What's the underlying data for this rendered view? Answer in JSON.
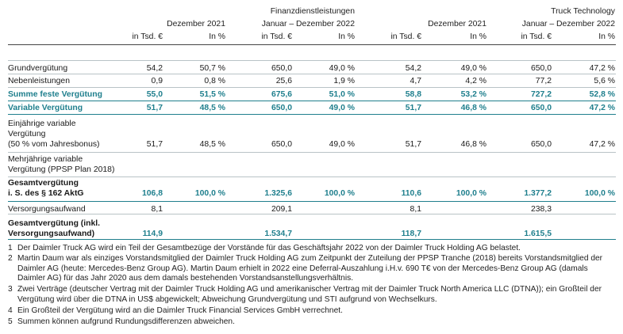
{
  "header": {
    "group1_title": "Finanzdienstleistungen",
    "group2_title": "Truck Technology",
    "periods": [
      "Dezember 2021",
      "Januar – Dezember 2022",
      "Dezember 2021",
      "Januar – Dezember 2022"
    ],
    "units": [
      "in Tsd. €",
      "In %",
      "in Tsd. €",
      "In %",
      "in Tsd. €",
      "In %",
      "in Tsd. €",
      "In %"
    ]
  },
  "rows": [
    {
      "label": [
        "Grundvergütung"
      ],
      "style": "normal",
      "values": [
        "54,2",
        "50,7 %",
        "650,0",
        "49,0 %",
        "54,2",
        "49,0 %",
        "650,0",
        "47,2 %"
      ]
    },
    {
      "label": [
        "Nebenleistungen"
      ],
      "style": "normal",
      "values": [
        "0,9",
        "0,8 %",
        "25,6",
        "1,9 %",
        "4,7",
        "4,2 %",
        "77,2",
        "5,6 %"
      ]
    },
    {
      "label": [
        "Summe feste Vergütung"
      ],
      "style": "teal",
      "values": [
        "55,0",
        "51,5 %",
        "675,6",
        "51,0 %",
        "58,8",
        "53,2 %",
        "727,2",
        "52,8 %"
      ]
    },
    {
      "label": [
        "Variable Vergütung"
      ],
      "style": "teal",
      "values": [
        "51,7",
        "48,5 %",
        "650,0",
        "49,0 %",
        "51,7",
        "46,8 %",
        "650,0",
        "47,2 %"
      ]
    },
    {
      "label": [
        "Einjährige variable",
        "Vergütung",
        "(50 % vom Jahresbonus)"
      ],
      "style": "normal",
      "values": [
        "51,7",
        "48,5 %",
        "650,0",
        "49,0 %",
        "51,7",
        "46,8 %",
        "650,0",
        "47,2 %"
      ]
    },
    {
      "label": [
        "Mehrjährige variable",
        "Vergütung (PPSP Plan 2018)"
      ],
      "style": "normal",
      "values": [
        "",
        "",
        "",
        "",
        "",
        "",
        "",
        ""
      ]
    },
    {
      "label": [
        "Gesamtvergütung",
        "i. S. des § 162 AktG"
      ],
      "style": "boldlabel",
      "values": [
        "106,8",
        "100,0 %",
        "1.325,6",
        "100,0 %",
        "110,6",
        "100,0 %",
        "1.377,2",
        "100,0 %"
      ]
    },
    {
      "label": [
        "Versorgungsaufwand"
      ],
      "style": "normal",
      "values": [
        "8,1",
        "",
        "209,1",
        "",
        "8,1",
        "",
        "238,3",
        ""
      ]
    },
    {
      "label": [
        "Gesamtvergütung (inkl.",
        "Versorgungsaufwand)"
      ],
      "style": "boldlabel",
      "values": [
        "114,9",
        "",
        "1.534,7",
        "",
        "118,7",
        "",
        "1.615,5",
        ""
      ]
    }
  ],
  "footnotes": [
    {
      "num": "1",
      "text": "Der Daimler Truck AG wird ein Teil der Gesamtbezüge der Vorstände für das Geschäftsjahr 2022 von der Daimler Truck Holding AG belastet."
    },
    {
      "num": "2",
      "text": "Martin Daum war als einziges Vorstandsmitglied der Daimler Truck Holding AG zum Zeitpunkt der Zuteilung der PPSP Tranche (2018) bereits Vorstands­mitglied der Daimler AG (heute: Mercedes-Benz Group AG). Martin Daum erhielt in 2022 eine Deferral-Auszahlung i.H.v. 690 T€ von der Mercedes-Benz Group AG (damals Daimler AG) für das Jahr 2020 aus dem damals bestehenden Vorstandsanstellungsverhältnis."
    },
    {
      "num": "3",
      "text": "Zwei Verträge (deutscher Vertrag mit der Daimler Truck Holding AG und amerikanischer Vertrag mit der Daimler Truck North America LLC (DTNA)); ein Groß­teil der Vergütung wird über die DTNA in US$ abgewickelt; Abweichung Grundvergütung und STI aufgrund von Wechselkurs."
    },
    {
      "num": "4",
      "text": "Ein Großteil der Vergütung wird an die Daimler Truck Financial Services GmbH verrechnet."
    },
    {
      "num": "5",
      "text": "Summen können aufgrund Rundungsdifferenzen abweichen."
    }
  ]
}
